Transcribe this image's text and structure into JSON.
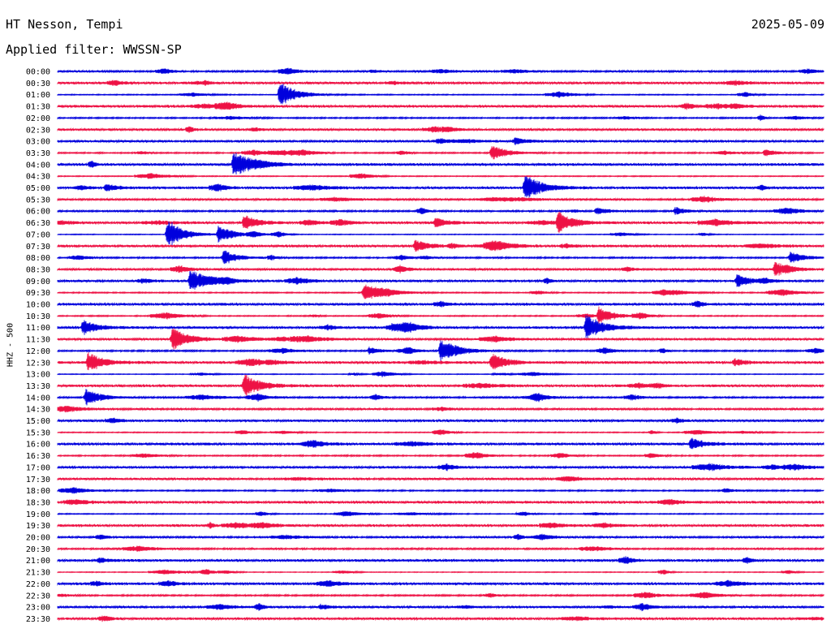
{
  "header": {
    "station": "HT Nesson, Tempi",
    "date": "2025-05-09",
    "filter_label": "Applied filter: WWSSN-SP"
  },
  "chart_data": {
    "type": "line",
    "title": "HT Nesson, Tempi",
    "ylabel": "HHZ - 500",
    "colors": [
      "#0000dd",
      "#ee1144"
    ],
    "rows": [
      "00:00",
      "00:30",
      "01:00",
      "01:30",
      "02:00",
      "02:30",
      "03:00",
      "03:30",
      "04:00",
      "04:30",
      "05:00",
      "05:30",
      "06:00",
      "06:30",
      "07:00",
      "07:30",
      "08:00",
      "08:30",
      "09:00",
      "09:30",
      "10:00",
      "10:30",
      "11:00",
      "11:30",
      "12:00",
      "12:30",
      "13:00",
      "13:30",
      "14:00",
      "14:30",
      "15:00",
      "15:30",
      "16:00",
      "16:30",
      "17:00",
      "17:30",
      "18:00",
      "18:30",
      "19:00",
      "19:30",
      "20:00",
      "20:30",
      "21:00",
      "21:30",
      "22:00",
      "22:30",
      "23:00",
      "23:30"
    ],
    "x_range_minutes": [
      0,
      30
    ],
    "events": [
      {
        "row": "01:00",
        "minute": 8.7,
        "amplitude": 1.0
      },
      {
        "row": "03:00",
        "minute": 17.9,
        "amplitude": 0.3
      },
      {
        "row": "03:30",
        "minute": 17.0,
        "amplitude": 0.7
      },
      {
        "row": "03:30",
        "minute": 27.7,
        "amplitude": 0.3
      },
      {
        "row": "04:00",
        "minute": 6.9,
        "amplitude": 1.0
      },
      {
        "row": "05:00",
        "minute": 18.3,
        "amplitude": 1.0
      },
      {
        "row": "05:00",
        "minute": 1.9,
        "amplitude": 0.3
      },
      {
        "row": "06:00",
        "minute": 21.1,
        "amplitude": 0.3
      },
      {
        "row": "06:00",
        "minute": 24.2,
        "amplitude": 0.3
      },
      {
        "row": "06:30",
        "minute": 7.3,
        "amplitude": 0.6
      },
      {
        "row": "06:30",
        "minute": 19.6,
        "amplitude": 0.8
      },
      {
        "row": "06:30",
        "minute": 14.8,
        "amplitude": 0.4
      },
      {
        "row": "07:00",
        "minute": 4.3,
        "amplitude": 1.0
      },
      {
        "row": "07:00",
        "minute": 6.3,
        "amplitude": 0.7
      },
      {
        "row": "07:30",
        "minute": 14.0,
        "amplitude": 0.5
      },
      {
        "row": "08:00",
        "minute": 6.5,
        "amplitude": 0.6
      },
      {
        "row": "08:00",
        "minute": 28.7,
        "amplitude": 0.5
      },
      {
        "row": "08:30",
        "minute": 28.1,
        "amplitude": 0.6
      },
      {
        "row": "09:00",
        "minute": 5.2,
        "amplitude": 0.9
      },
      {
        "row": "09:00",
        "minute": 26.6,
        "amplitude": 0.5
      },
      {
        "row": "09:30",
        "minute": 12.0,
        "amplitude": 0.8
      },
      {
        "row": "10:30",
        "minute": 21.2,
        "amplitude": 0.7
      },
      {
        "row": "11:00",
        "minute": 1.0,
        "amplitude": 0.6
      },
      {
        "row": "11:00",
        "minute": 20.7,
        "amplitude": 1.0
      },
      {
        "row": "11:30",
        "minute": 4.5,
        "amplitude": 0.9
      },
      {
        "row": "12:00",
        "minute": 15.0,
        "amplitude": 1.0
      },
      {
        "row": "12:00",
        "minute": 12.2,
        "amplitude": 0.3
      },
      {
        "row": "12:30",
        "minute": 1.2,
        "amplitude": 0.8
      },
      {
        "row": "12:30",
        "minute": 17.0,
        "amplitude": 0.7
      },
      {
        "row": "12:30",
        "minute": 26.5,
        "amplitude": 0.3
      },
      {
        "row": "13:30",
        "minute": 7.3,
        "amplitude": 0.9
      },
      {
        "row": "14:00",
        "minute": 1.1,
        "amplitude": 0.7
      },
      {
        "row": "16:00",
        "minute": 24.8,
        "amplitude": 0.5
      },
      {
        "row": "18:00",
        "minute": 26.1,
        "amplitude": 0.2
      },
      {
        "row": "21:00",
        "minute": 1.6,
        "amplitude": 0.2
      },
      {
        "row": "23:00",
        "minute": 10.3,
        "amplitude": 0.2
      }
    ]
  }
}
